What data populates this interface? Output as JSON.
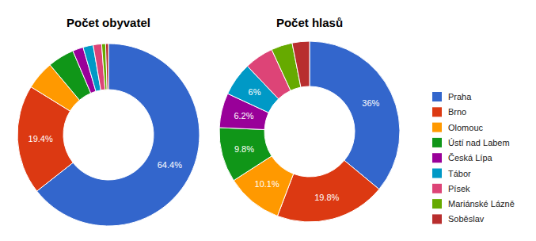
{
  "chart_data": [
    {
      "type": "donut",
      "title": "Počet obyvatel",
      "categories": [
        "Praha",
        "Brno",
        "Olomouc",
        "Ústí nad Labem",
        "Česká Lípa",
        "Tábor",
        "Písek",
        "Mariánské Lázně",
        "Soběslav"
      ],
      "values": [
        64.4,
        19.4,
        5.1,
        4.7,
        1.9,
        1.8,
        1.5,
        0.7,
        0.5
      ],
      "value_labels": [
        "64.4%",
        "19.4%",
        null,
        null,
        null,
        null,
        null,
        null,
        null
      ],
      "colors": [
        "#3366cc",
        "#dc3912",
        "#ff9900",
        "#109618",
        "#990099",
        "#0099c6",
        "#dd4477",
        "#66aa00",
        "#b82e2e"
      ],
      "data_labels": true
    },
    {
      "type": "donut",
      "title": "Počet hlasů",
      "categories": [
        "Praha",
        "Brno",
        "Olomouc",
        "Ústí nad Labem",
        "Česká Lípa",
        "Tábor",
        "Písek",
        "Mariánské Lázně",
        "Soběslav"
      ],
      "values": [
        36,
        19.8,
        10.1,
        9.8,
        6.2,
        6,
        5.2,
        3.8,
        3.1
      ],
      "value_labels": [
        "36%",
        "19.8%",
        "10.1%",
        "9.8%",
        "6.2%",
        "6%",
        null,
        null,
        null
      ],
      "colors": [
        "#3366cc",
        "#dc3912",
        "#ff9900",
        "#109618",
        "#990099",
        "#0099c6",
        "#dd4477",
        "#66aa00",
        "#b82e2e"
      ],
      "data_labels": true,
      "legend": "right"
    }
  ]
}
